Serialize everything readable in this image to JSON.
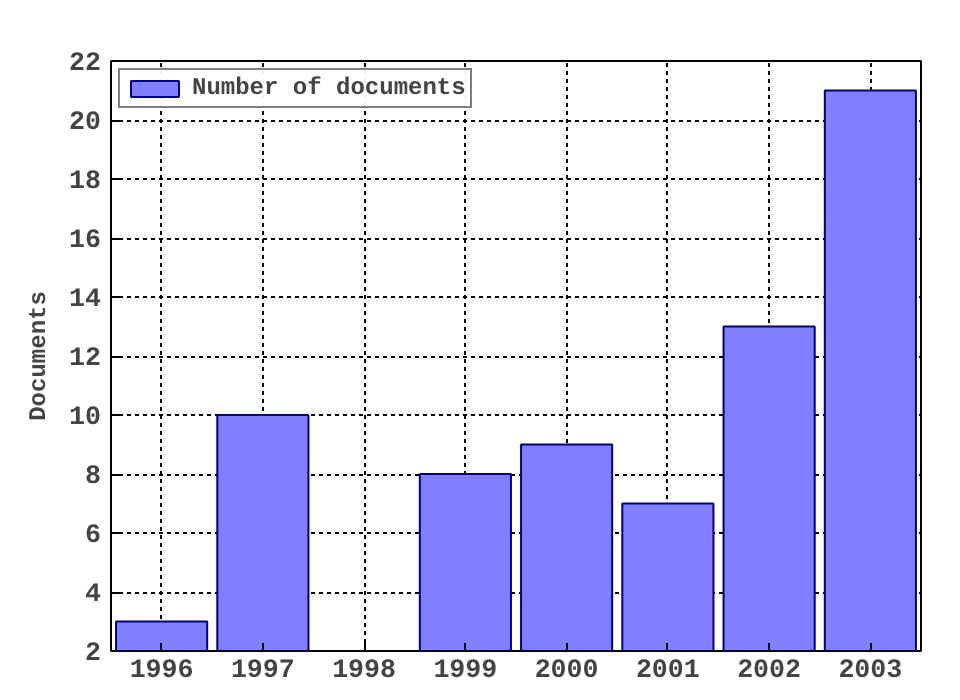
{
  "chart_data": {
    "type": "bar",
    "ylabel": "Documents",
    "x": [
      1996,
      1997,
      1998,
      1999,
      2000,
      2001,
      2002,
      2003
    ],
    "series": [
      {
        "name": "Number of documents",
        "color": "#8080ff",
        "values": [
          3,
          10,
          null,
          8,
          9,
          7,
          13,
          21
        ]
      }
    ],
    "xlim": [
      1995.5,
      2003.5
    ],
    "xticks": [
      1996,
      1997,
      1998,
      1999,
      2000,
      2001,
      2002,
      2003
    ],
    "ylim": [
      2,
      22
    ],
    "yticks": [
      2,
      4,
      6,
      8,
      10,
      12,
      14,
      16,
      18,
      20,
      22
    ],
    "grid": true,
    "legend": "top left"
  }
}
